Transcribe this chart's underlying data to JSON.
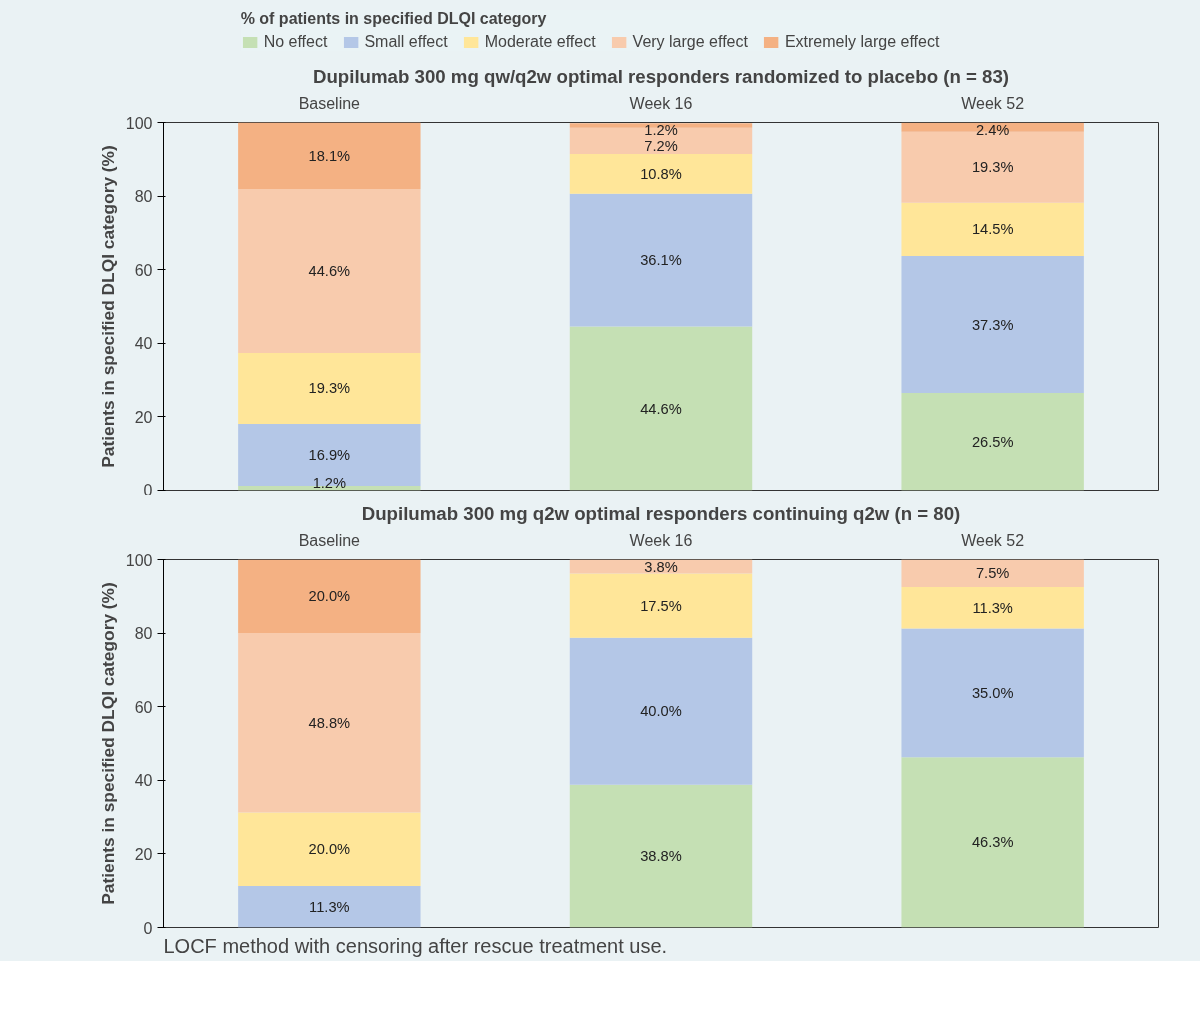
{
  "chart_data": [
    {
      "type": "bar",
      "stacked": true,
      "title": "Dupilumab 300 mg qw/q2w optimal responders randomized to placebo (n = 83)",
      "ylabel": "Patients in specified DLQI category (%)",
      "legend_title": "% of patients in specified DLQI category",
      "legend": "top",
      "categories": [
        "Baseline",
        "Week 16",
        "Week 52"
      ],
      "ylim": [
        0,
        100.1
      ],
      "yticks": [
        0,
        20,
        40,
        60,
        80,
        100
      ],
      "grid": false,
      "series": [
        {
          "name": "No effect",
          "color": "#c5e0b4",
          "values": [
            1.2,
            44.6,
            26.5
          ],
          "value_labels": [
            "1.2%",
            "44.6%",
            "26.5%"
          ]
        },
        {
          "name": "Small effect",
          "color": "#b4c7e7",
          "values": [
            16.9,
            36.1,
            37.3
          ],
          "value_labels": [
            "16.9%",
            "36.1%",
            "37.3%"
          ]
        },
        {
          "name": "Moderate effect",
          "color": "#ffe699",
          "values": [
            19.3,
            10.8,
            14.5
          ],
          "value_labels": [
            "19.3%",
            "10.8%",
            "14.5%"
          ]
        },
        {
          "name": "Very large effect",
          "color": "#f8cbad",
          "values": [
            44.6,
            7.2,
            19.3
          ],
          "value_labels": [
            "44.6%",
            "7.2%",
            "19.3%"
          ]
        },
        {
          "name": "Extremely large effect",
          "color": "#f4b183",
          "values": [
            18.1,
            1.2,
            2.4
          ],
          "value_labels": [
            "18.1%",
            "1.2%",
            "2.4%"
          ]
        }
      ]
    },
    {
      "type": "bar",
      "stacked": true,
      "title": "Dupilumab 300 mg q2w optimal responders continuing q2w (n = 80)",
      "ylabel": "Patients in specified DLQI category (%)",
      "categories": [
        "Baseline",
        "Week 16",
        "Week 52"
      ],
      "ylim": [
        0,
        100.1
      ],
      "yticks": [
        0,
        20,
        40,
        60,
        80,
        100
      ],
      "grid": false,
      "annotations": [
        "LOCF method with censoring after rescue treatment use."
      ],
      "series": [
        {
          "color": "#c5e0b4",
          "values": [
            null,
            38.8,
            46.3
          ],
          "value_labels": [
            null,
            "38.8%",
            "46.3%"
          ]
        },
        {
          "color": "#b4c7e7",
          "values": [
            11.3,
            40.0,
            35.0
          ],
          "value_labels": [
            "11.3%",
            "40.0%",
            "35.0%"
          ]
        },
        {
          "color": "#ffe699",
          "values": [
            20.0,
            17.5,
            11.3
          ],
          "value_labels": [
            "20.0%",
            "17.5%",
            "11.3%"
          ]
        },
        {
          "color": "#f8cbad",
          "values": [
            48.8,
            3.8,
            7.5
          ],
          "value_labels": [
            "48.8%",
            "3.8%",
            "7.5%"
          ]
        },
        {
          "color": "#f4b183",
          "values": [
            20.0,
            null,
            null
          ],
          "value_labels": [
            "20.0%",
            null,
            null
          ]
        }
      ]
    }
  ]
}
